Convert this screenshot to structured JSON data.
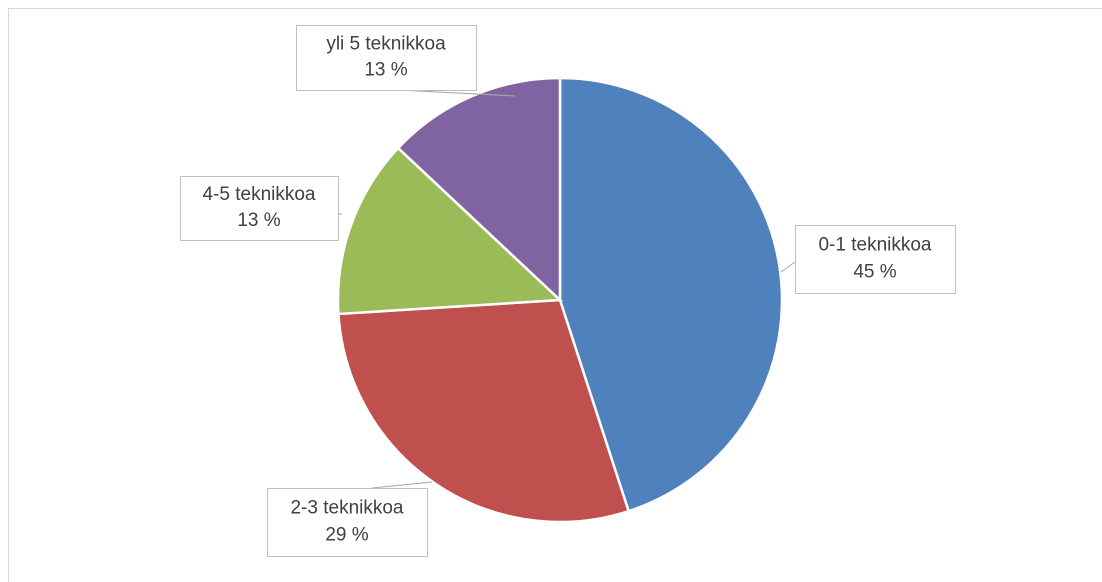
{
  "chart_data": {
    "type": "pie",
    "categories": [
      "0-1 teknikkoa",
      "2-3 teknikkoa",
      "4-5 teknikkoa",
      "yli 5 teknikkoa"
    ],
    "values": [
      45,
      29,
      13,
      13
    ],
    "value_labels": [
      "45 %",
      "29 %",
      "13 %",
      "13 %"
    ],
    "colors": [
      "#4f81bd",
      "#c0504d",
      "#9bbb59",
      "#8064a2"
    ]
  }
}
